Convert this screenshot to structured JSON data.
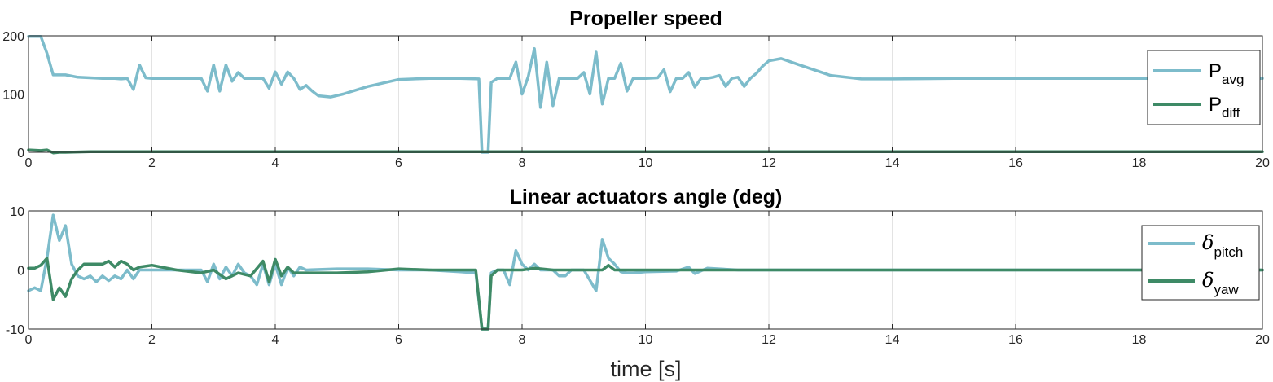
{
  "chart_data": [
    {
      "type": "line",
      "title": "Propeller speed",
      "xlabel": "",
      "ylabel": "",
      "xlim": [
        0,
        20
      ],
      "ylim": [
        0,
        200
      ],
      "xticks": [
        0,
        2,
        4,
        6,
        8,
        10,
        12,
        14,
        16,
        18,
        20
      ],
      "yticks": [
        0,
        100,
        200
      ],
      "grid": true,
      "legend_position": "right",
      "series": [
        {
          "name": "P",
          "name_sub": "avg",
          "color": "#7dbccb",
          "x": [
            0,
            0.2,
            0.3,
            0.4,
            0.5,
            0.6,
            0.8,
            1.0,
            1.2,
            1.4,
            1.5,
            1.6,
            1.7,
            1.8,
            1.9,
            2.0,
            2.4,
            2.8,
            2.9,
            3.0,
            3.1,
            3.2,
            3.3,
            3.4,
            3.5,
            3.6,
            3.8,
            3.9,
            4.0,
            4.1,
            4.2,
            4.3,
            4.4,
            4.5,
            4.6,
            4.7,
            4.9,
            5.1,
            5.5,
            6.0,
            6.5,
            7.0,
            7.3,
            7.35,
            7.45,
            7.5,
            7.6,
            7.7,
            7.8,
            7.9,
            8.0,
            8.1,
            8.2,
            8.3,
            8.4,
            8.5,
            8.6,
            8.7,
            8.8,
            8.9,
            9.0,
            9.1,
            9.2,
            9.3,
            9.4,
            9.5,
            9.6,
            9.7,
            9.8,
            9.9,
            10.0,
            10.2,
            10.3,
            10.4,
            10.5,
            10.6,
            10.7,
            10.8,
            10.9,
            11.0,
            11.1,
            11.2,
            11.3,
            11.4,
            11.5,
            11.6,
            11.7,
            11.8,
            11.9,
            12.0,
            12.2,
            12.5,
            13.0,
            13.5,
            14.0,
            15.0,
            16.0,
            17.0,
            18.0,
            19.0,
            20.0
          ],
          "y": [
            199,
            199,
            170,
            133,
            133,
            133,
            129,
            128,
            127,
            127,
            126,
            127,
            108,
            150,
            128,
            127,
            127,
            127,
            105,
            150,
            105,
            150,
            122,
            137,
            127,
            127,
            127,
            110,
            138,
            117,
            138,
            127,
            108,
            115,
            105,
            97,
            95,
            100,
            113,
            125,
            127,
            127,
            126,
            0,
            0,
            120,
            127,
            127,
            127,
            155,
            100,
            130,
            178,
            77,
            155,
            80,
            127,
            127,
            127,
            127,
            137,
            100,
            172,
            83,
            127,
            127,
            153,
            105,
            127,
            127,
            127,
            128,
            142,
            104,
            127,
            127,
            137,
            112,
            127,
            127,
            129,
            132,
            113,
            127,
            129,
            113,
            127,
            136,
            148,
            157,
            161,
            150,
            132,
            126,
            126,
            127,
            127,
            127,
            127,
            127,
            127
          ]
        },
        {
          "name": "P",
          "name_sub": "diff",
          "color": "#3e8a66",
          "x": [
            0,
            0.2,
            0.3,
            0.4,
            0.5,
            0.6,
            1.0,
            2.0,
            4.0,
            6.0,
            7.3,
            7.5,
            10.0,
            14.0,
            20.0
          ],
          "y": [
            4,
            3,
            4,
            -1,
            0,
            0,
            1,
            1,
            1,
            1,
            1,
            1,
            1,
            1,
            1
          ]
        }
      ]
    },
    {
      "type": "line",
      "title": "Linear actuators angle (deg)",
      "xlabel": "time [s]",
      "ylabel": "",
      "xlim": [
        0,
        20
      ],
      "ylim": [
        -10,
        10
      ],
      "xticks": [
        0,
        2,
        4,
        6,
        8,
        10,
        12,
        14,
        16,
        18,
        20
      ],
      "yticks": [
        -10,
        0,
        10
      ],
      "grid": true,
      "legend_position": "right",
      "series": [
        {
          "name": "δ",
          "name_sub": "pitch",
          "color": "#7dbccb",
          "x": [
            0,
            0.1,
            0.2,
            0.3,
            0.4,
            0.5,
            0.6,
            0.7,
            0.8,
            0.9,
            1.0,
            1.1,
            1.2,
            1.3,
            1.4,
            1.5,
            1.6,
            1.7,
            1.8,
            2.0,
            2.4,
            2.8,
            2.9,
            3.0,
            3.1,
            3.2,
            3.3,
            3.4,
            3.5,
            3.6,
            3.7,
            3.8,
            3.9,
            4.0,
            4.1,
            4.2,
            4.3,
            4.4,
            4.5,
            5.0,
            5.5,
            6.0,
            6.5,
            7.0,
            7.25,
            7.35,
            7.45,
            7.5,
            7.6,
            7.7,
            7.8,
            7.9,
            8.0,
            8.1,
            8.2,
            8.3,
            8.4,
            8.5,
            8.6,
            8.7,
            8.8,
            9.0,
            9.2,
            9.3,
            9.4,
            9.5,
            9.6,
            9.7,
            9.8,
            10.0,
            10.5,
            10.7,
            10.8,
            11.0,
            11.5,
            12.0,
            14.0,
            20.0
          ],
          "y": [
            -3.5,
            -3,
            -3.5,
            2,
            9.3,
            5,
            7.5,
            1,
            -1,
            -1.5,
            -1,
            -2,
            -1,
            -1.8,
            -1,
            -1.5,
            0,
            -1.5,
            0,
            0,
            0,
            0,
            -2,
            1,
            -1.5,
            0.5,
            -1,
            1,
            -0.5,
            -1,
            -2.5,
            1,
            -2.5,
            1,
            -2.5,
            0.5,
            -1,
            0.5,
            0,
            0.2,
            0.2,
            0,
            0,
            -0.3,
            -0.5,
            -10,
            -10,
            -0.5,
            0,
            0,
            -2.5,
            3.3,
            1,
            0,
            1,
            0,
            0,
            0,
            -1,
            -1,
            0,
            0,
            -3.5,
            5.2,
            2,
            1,
            -0.3,
            -0.5,
            -0.5,
            -0.3,
            -0.2,
            0.5,
            -0.6,
            0.3,
            0,
            0,
            0,
            0
          ]
        },
        {
          "name": "δ",
          "name_sub": "yaw",
          "color": "#3e8a66",
          "x": [
            0,
            0.1,
            0.2,
            0.3,
            0.4,
            0.5,
            0.6,
            0.7,
            0.8,
            0.9,
            1.0,
            1.2,
            1.3,
            1.4,
            1.5,
            1.6,
            1.7,
            1.8,
            2.0,
            2.4,
            2.8,
            3.0,
            3.2,
            3.4,
            3.6,
            3.8,
            3.9,
            4.0,
            4.1,
            4.2,
            4.3,
            4.5,
            5.0,
            5.5,
            6.0,
            6.5,
            7.0,
            7.25,
            7.35,
            7.45,
            7.5,
            7.6,
            7.8,
            8.0,
            8.2,
            8.5,
            9.0,
            9.3,
            9.4,
            9.5,
            9.8,
            10.0,
            11.0,
            12.0,
            14.0,
            20.0
          ],
          "y": [
            0.3,
            0.3,
            0.8,
            2,
            -5,
            -3,
            -4.5,
            -1.5,
            0,
            1,
            1,
            1,
            1.5,
            0.5,
            1.5,
            1,
            0,
            0.5,
            0.8,
            0,
            -0.5,
            0,
            -1.5,
            -0.5,
            -1,
            1.5,
            -2,
            1.8,
            -1,
            0.5,
            -0.5,
            -0.5,
            -0.5,
            -0.3,
            0.2,
            0,
            0,
            0,
            -10,
            -10,
            -1,
            0,
            0,
            0,
            0.3,
            0,
            0,
            0,
            0.8,
            0,
            0,
            0,
            0,
            0,
            0,
            0
          ]
        }
      ]
    }
  ]
}
